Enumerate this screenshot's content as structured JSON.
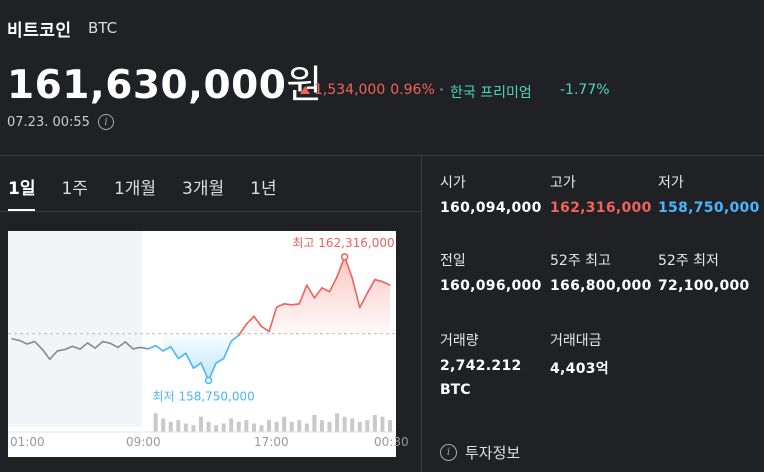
{
  "coin": {
    "name": "비트코인",
    "symbol": "BTC"
  },
  "price": {
    "value": "161,630,000",
    "unit": "원"
  },
  "change": {
    "amount": "1,534,000",
    "percent": "0.96%"
  },
  "premium": {
    "label": "한국 프리미엄",
    "value": "-1.77%"
  },
  "timestamp": "07.23. 00:55",
  "tabs": [
    "1일",
    "1주",
    "1개월",
    "3개월",
    "1년"
  ],
  "stats": {
    "open": {
      "label": "시가",
      "value": "160,094,000"
    },
    "high": {
      "label": "고가",
      "value": "162,316,000"
    },
    "low": {
      "label": "저가",
      "value": "158,750,000"
    },
    "prev": {
      "label": "전일",
      "value": "160,096,000"
    },
    "high52": {
      "label": "52주 최고",
      "value": "166,800,000"
    },
    "low52": {
      "label": "52주 최저",
      "value": "72,100,000"
    },
    "volume": {
      "label": "거래량",
      "value": "2,742.212",
      "unit": "BTC"
    },
    "turnover": {
      "label": "거래대금",
      "value": "4,403억"
    }
  },
  "invest_info": "투자정보",
  "colors": {
    "up": "#f0625c",
    "down": "#4bb4ff",
    "premium": "#4fd6b4",
    "bg": "#202124"
  },
  "chart_data": {
    "type": "line",
    "x_ticks": [
      "01:00",
      "09:00",
      "17:00",
      "00:30"
    ],
    "y": [
      159950000,
      159900000,
      159800000,
      159870000,
      159650000,
      159360000,
      159600000,
      159640000,
      159730000,
      159650000,
      159830000,
      159680000,
      159870000,
      159820000,
      159700000,
      159860000,
      159660000,
      159700000,
      159660000,
      159750000,
      159600000,
      159720000,
      159380000,
      159530000,
      159100000,
      159250000,
      158750000,
      159250000,
      159380000,
      159880000,
      160050000,
      160370000,
      160600000,
      160310000,
      160160000,
      160860000,
      160960000,
      160930000,
      160960000,
      161500000,
      161130000,
      161420000,
      161310000,
      161740000,
      162316000,
      161710000,
      160850000,
      161270000,
      161660000,
      161600000,
      161500000
    ],
    "ylim": [
      158500000,
      162600000
    ],
    "prev_close": 160096000,
    "annotations": {
      "high": {
        "label": "최고 162,316,000",
        "value": 162316000
      },
      "low": {
        "label": "최저 158,750,000",
        "value": 158750000
      }
    },
    "volume": [
      0,
      0,
      0,
      0,
      0,
      0,
      0,
      0,
      0,
      0,
      0,
      0,
      0,
      0,
      0,
      0,
      0,
      0,
      0,
      0.55,
      0.4,
      0.3,
      0.35,
      0.25,
      0.2,
      0.45,
      0.3,
      0.2,
      0.25,
      0.4,
      0.3,
      0.35,
      0.25,
      0.2,
      0.35,
      0.3,
      0.45,
      0.3,
      0.35,
      0.25,
      0.5,
      0.35,
      0.3,
      0.55,
      0.45,
      0.4,
      0.3,
      0.35,
      0.5,
      0.45,
      0.35
    ]
  }
}
